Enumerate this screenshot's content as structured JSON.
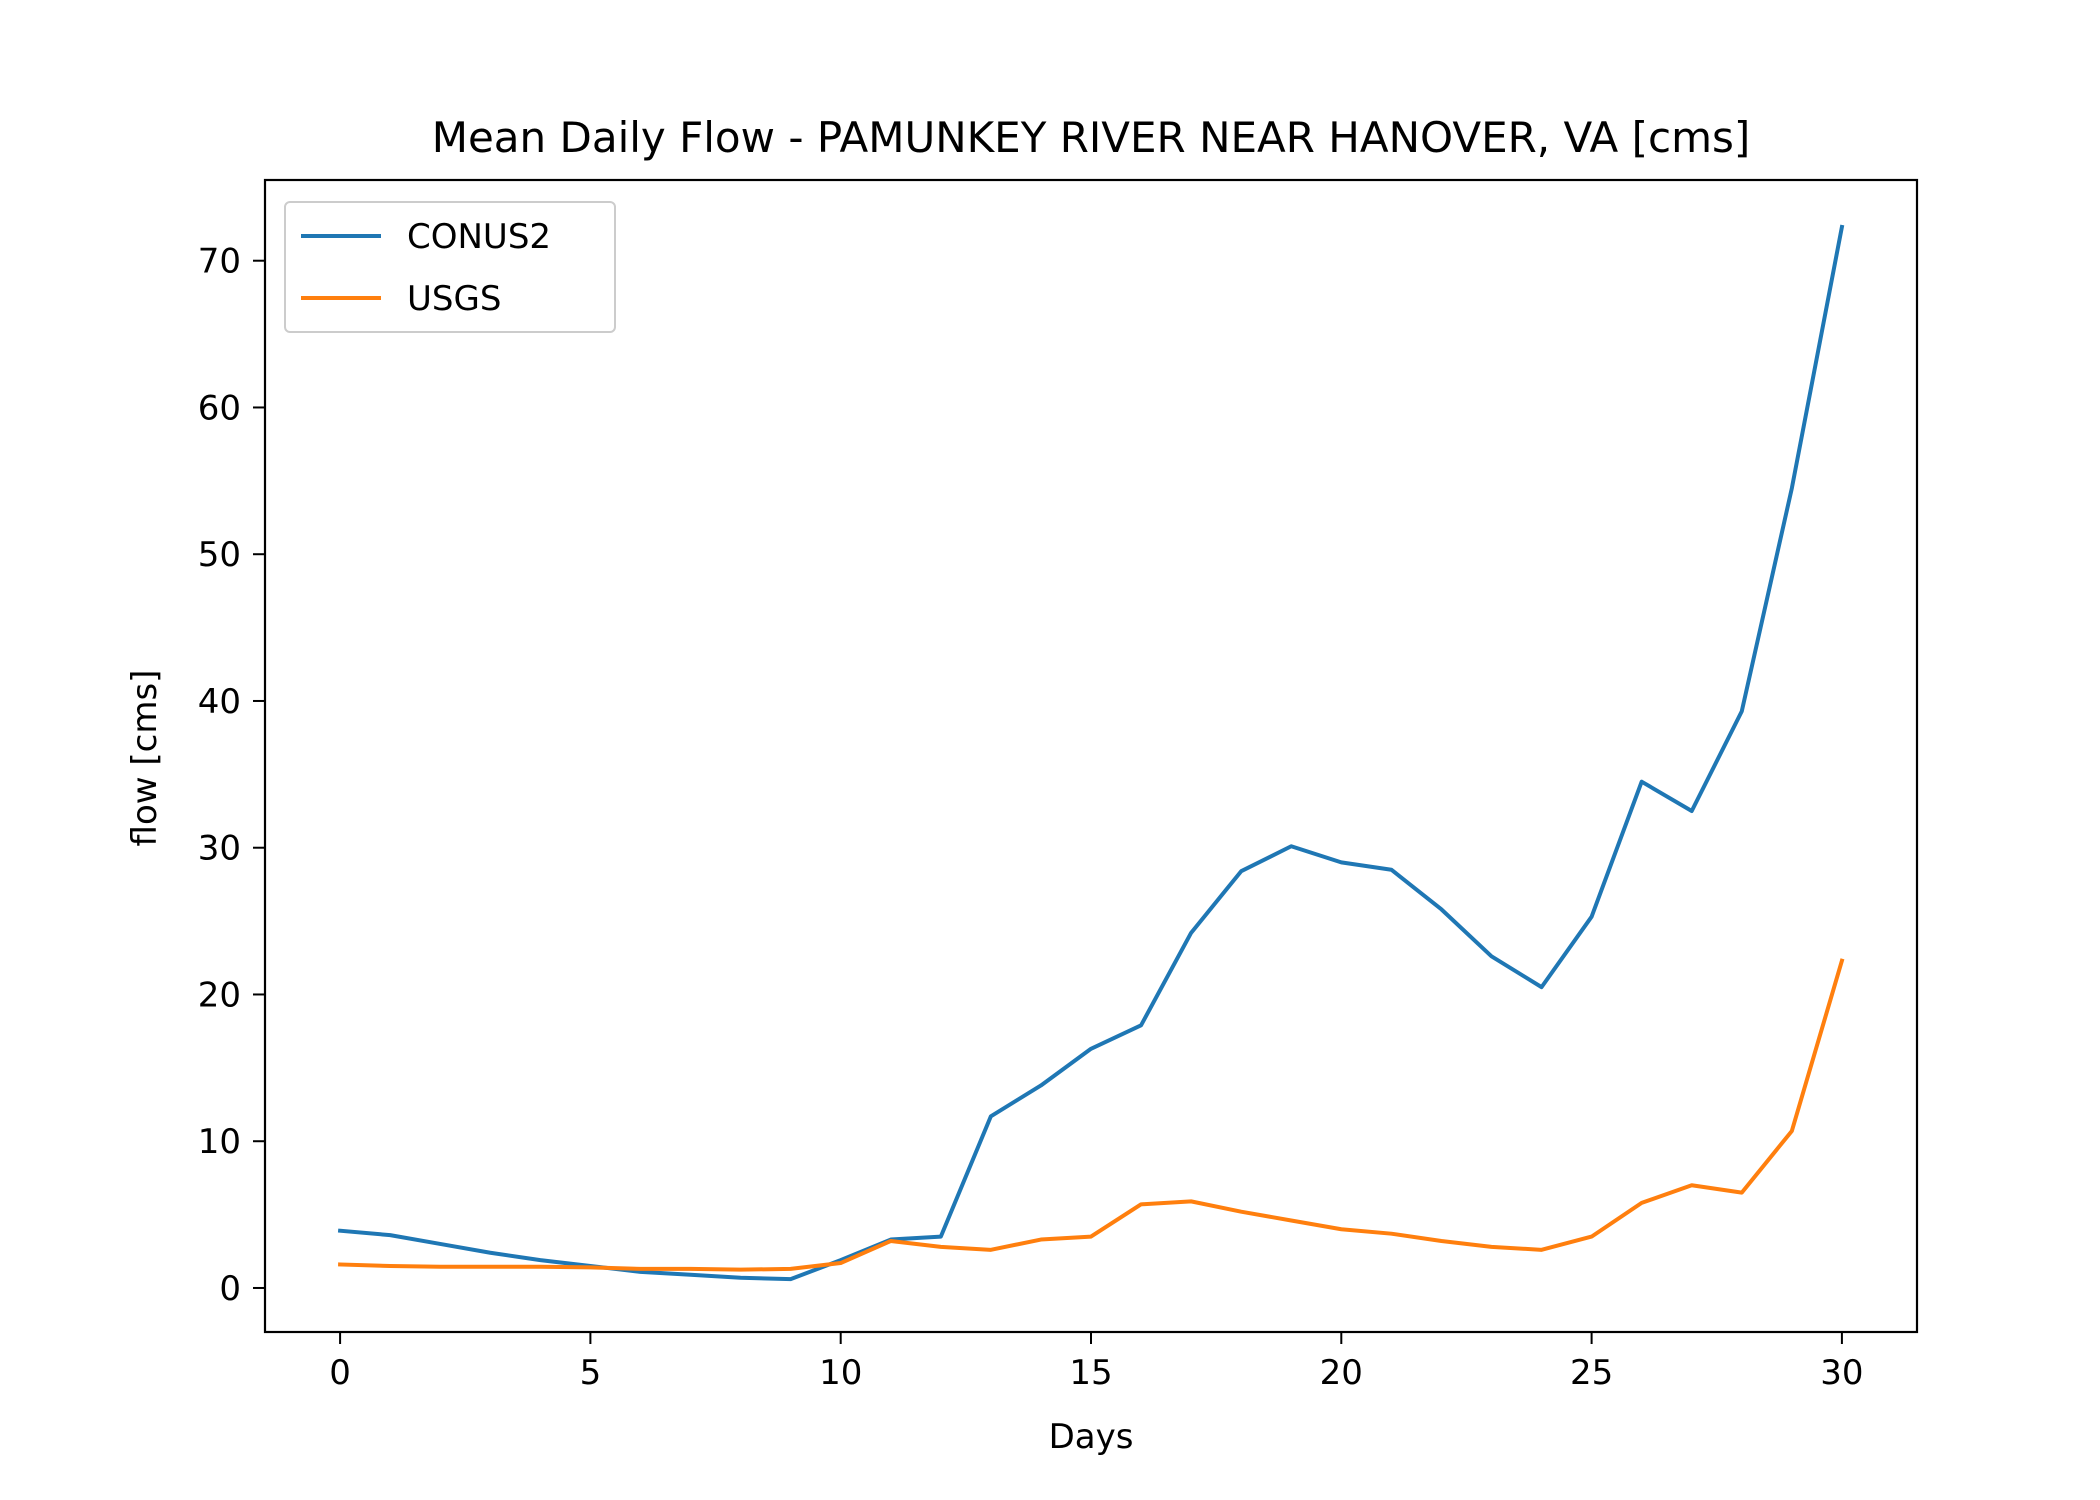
{
  "chart_data": {
    "type": "line",
    "title": "Mean Daily Flow - PAMUNKEY RIVER NEAR HANOVER, VA [cms]",
    "xlabel": "Days",
    "ylabel": "flow [cms]",
    "xlim": [
      -1.5,
      31.5
    ],
    "ylim": [
      -3,
      75.5
    ],
    "xticks": [
      0,
      5,
      10,
      15,
      20,
      25,
      30
    ],
    "yticks": [
      0,
      10,
      20,
      30,
      40,
      50,
      60,
      70
    ],
    "grid": false,
    "legend_position": "upper-left",
    "x": [
      0,
      1,
      2,
      3,
      4,
      5,
      6,
      7,
      8,
      9,
      10,
      11,
      12,
      13,
      14,
      15,
      16,
      17,
      18,
      19,
      20,
      21,
      22,
      23,
      24,
      25,
      26,
      27,
      28,
      29,
      30
    ],
    "series": [
      {
        "name": "CONUS2",
        "color": "#1f77b4",
        "values": [
          3.9,
          3.6,
          3.0,
          2.4,
          1.9,
          1.5,
          1.1,
          0.9,
          0.7,
          0.6,
          1.9,
          3.3,
          3.5,
          11.7,
          13.8,
          16.3,
          17.9,
          24.2,
          28.4,
          30.1,
          29.0,
          28.5,
          25.8,
          22.6,
          20.5,
          25.3,
          34.5,
          32.5,
          39.3,
          54.5,
          72.3
        ]
      },
      {
        "name": "USGS",
        "color": "#ff7f0e",
        "values": [
          1.6,
          1.5,
          1.45,
          1.45,
          1.45,
          1.4,
          1.3,
          1.3,
          1.25,
          1.3,
          1.7,
          3.2,
          2.8,
          2.6,
          3.3,
          3.5,
          5.7,
          5.9,
          5.2,
          4.6,
          4.0,
          3.7,
          3.2,
          2.8,
          2.6,
          3.5,
          5.8,
          7.0,
          6.5,
          10.7,
          22.3
        ]
      }
    ]
  }
}
